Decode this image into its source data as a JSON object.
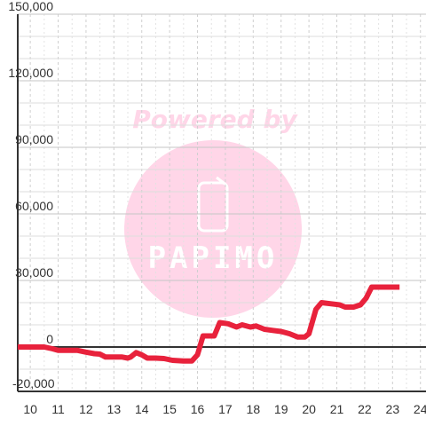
{
  "chart_data": {
    "type": "line",
    "title": "",
    "xlabel": "",
    "ylabel": "",
    "xlim": [
      9.55,
      24.2
    ],
    "ylim": [
      -20000,
      150000
    ],
    "x_ticks": [
      10,
      11,
      12,
      13,
      14,
      15,
      16,
      17,
      18,
      19,
      20,
      21,
      22,
      23,
      24
    ],
    "y_ticks": [
      -20000,
      0,
      30000,
      60000,
      90000,
      120000,
      150000
    ],
    "x_tick_labels": [
      "10",
      "11",
      "12",
      "13",
      "14",
      "15",
      "16",
      "17",
      "18",
      "19",
      "20",
      "21",
      "22",
      "23",
      "24"
    ],
    "y_tick_labels": [
      "-20,000",
      "0",
      "30,000",
      "60,000",
      "90,000",
      "120,000",
      "150,000"
    ],
    "grid": true,
    "series": [
      {
        "color": "#e8223c",
        "x": [
          9.55,
          10.2,
          10.5,
          10.8,
          11.0,
          11.5,
          11.7,
          12.0,
          12.3,
          12.5,
          12.7,
          13.0,
          13.3,
          13.5,
          13.6,
          13.8,
          14.0,
          14.2,
          14.5,
          14.8,
          15.1,
          15.5,
          15.8,
          16.0,
          16.2,
          16.4,
          16.6,
          16.8,
          17.1,
          17.4,
          17.6,
          17.9,
          18.1,
          18.4,
          18.7,
          19.0,
          19.3,
          19.6,
          19.85,
          20.0,
          20.25,
          20.45,
          20.8,
          21.1,
          21.3,
          21.6,
          21.85,
          22.05,
          22.25,
          23.25
        ],
        "y": [
          0,
          0,
          0,
          -800,
          -1500,
          -1500,
          -1500,
          -2300,
          -3000,
          -3200,
          -4500,
          -4500,
          -4500,
          -5000,
          -4500,
          -2500,
          -3500,
          -5000,
          -5000,
          -5200,
          -6000,
          -6300,
          -6300,
          -3500,
          5000,
          5000,
          5000,
          11000,
          10500,
          9000,
          10000,
          9000,
          9500,
          8000,
          7500,
          7000,
          6000,
          4500,
          4500,
          6000,
          17000,
          20000,
          19500,
          19000,
          18000,
          18000,
          19000,
          22000,
          27000,
          27000
        ]
      }
    ]
  },
  "watermark": {
    "tagline": "Powered by",
    "brand": "PAPIMO",
    "color": "#ffd6e8"
  }
}
